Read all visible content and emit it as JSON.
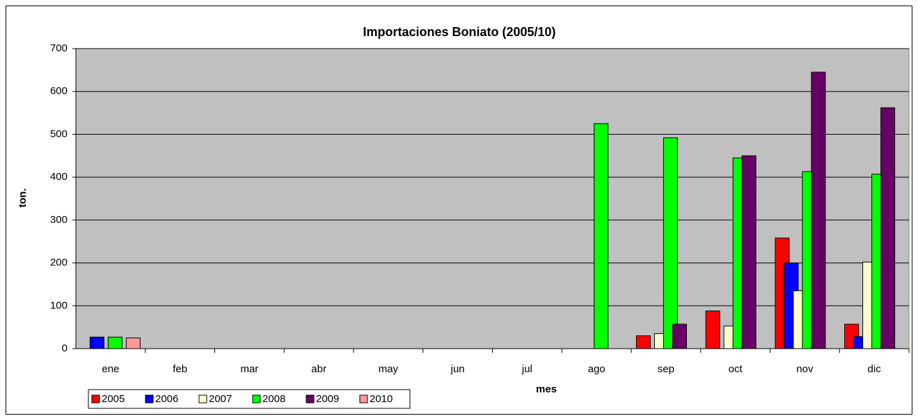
{
  "chart_data": {
    "type": "bar",
    "title": "Importaciones Boniato (2005/10)",
    "x_label": "mes",
    "y_label": "ton.",
    "categories": [
      "ene",
      "feb",
      "mar",
      "abr",
      "may",
      "jun",
      "jul",
      "ago",
      "sep",
      "oct",
      "nov",
      "dic"
    ],
    "series": [
      {
        "name": "2005",
        "color": "#ff0000",
        "values": [
          null,
          null,
          null,
          null,
          null,
          null,
          null,
          null,
          30,
          88,
          258,
          57
        ]
      },
      {
        "name": "2006",
        "color": "#0000ff",
        "values": [
          27,
          null,
          null,
          null,
          null,
          null,
          null,
          null,
          null,
          null,
          200,
          28
        ]
      },
      {
        "name": "2007",
        "color": "#ffffcc",
        "values": [
          null,
          null,
          null,
          null,
          null,
          null,
          null,
          null,
          35,
          53,
          135,
          202
        ]
      },
      {
        "name": "2008",
        "color": "#00ff00",
        "values": [
          27,
          null,
          null,
          null,
          null,
          null,
          null,
          525,
          492,
          445,
          413,
          407
        ]
      },
      {
        "name": "2009",
        "color": "#660066",
        "values": [
          null,
          null,
          null,
          null,
          null,
          null,
          null,
          null,
          57,
          450,
          645,
          562
        ]
      },
      {
        "name": "2010",
        "color": "#ff9999",
        "values": [
          25,
          null,
          null,
          null,
          null,
          null,
          null,
          null,
          null,
          null,
          null,
          null
        ]
      }
    ],
    "ylim": [
      0,
      700
    ],
    "yticks": [
      0,
      100,
      200,
      300,
      400,
      500,
      600,
      700
    ],
    "grid": true,
    "plot_background": "#c0c0c0",
    "legend": "bottom-left"
  }
}
